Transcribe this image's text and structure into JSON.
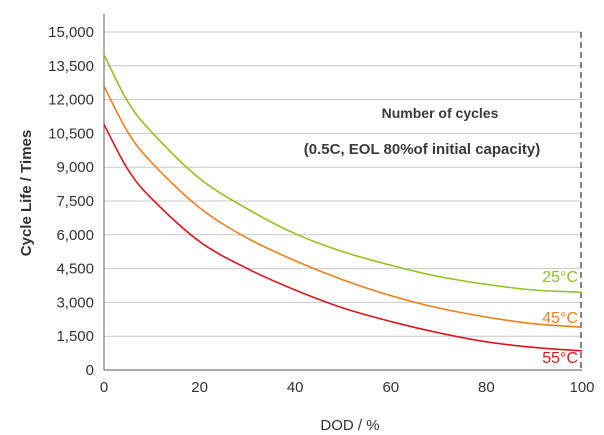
{
  "chart_data": {
    "type": "line",
    "title": "",
    "xlabel": "DOD / %",
    "ylabel": "Cycle Life / Times",
    "xlim": [
      0,
      100
    ],
    "ylim": [
      0,
      15000
    ],
    "x_ticks": [
      "0",
      "20",
      "40",
      "60",
      "80",
      "100"
    ],
    "y_ticks": [
      "0",
      "1,500",
      "3,000",
      "4,500",
      "6,000",
      "7,500",
      "9,000",
      "10,500",
      "12,000",
      "13,500",
      "15,000"
    ],
    "grid": "horizontal",
    "reference_line": {
      "x": 100,
      "style": "dashed"
    },
    "annotation": {
      "line1": "Number of cycles",
      "line2": "(0.5C, EOL 80%of initial capacity)"
    },
    "series": [
      {
        "name": "25°C",
        "color": "#8fc31f",
        "x": [
          0,
          5,
          10,
          20,
          30,
          40,
          50,
          60,
          70,
          80,
          90,
          100
        ],
        "y": [
          14000,
          11900,
          10550,
          8500,
          7150,
          6050,
          5250,
          4650,
          4150,
          3800,
          3550,
          3450
        ]
      },
      {
        "name": "45°C",
        "color": "#ee7f1a",
        "x": [
          0,
          5,
          10,
          20,
          30,
          40,
          50,
          60,
          70,
          80,
          90,
          100
        ],
        "y": [
          12600,
          10550,
          9200,
          7200,
          5850,
          4850,
          4000,
          3300,
          2750,
          2350,
          2050,
          1900
        ]
      },
      {
        "name": "55°C",
        "color": "#d7191f",
        "x": [
          0,
          5,
          10,
          20,
          30,
          40,
          50,
          60,
          70,
          80,
          90,
          100
        ],
        "y": [
          10900,
          8900,
          7600,
          5700,
          4500,
          3550,
          2750,
          2150,
          1650,
          1250,
          1000,
          850
        ]
      }
    ]
  }
}
